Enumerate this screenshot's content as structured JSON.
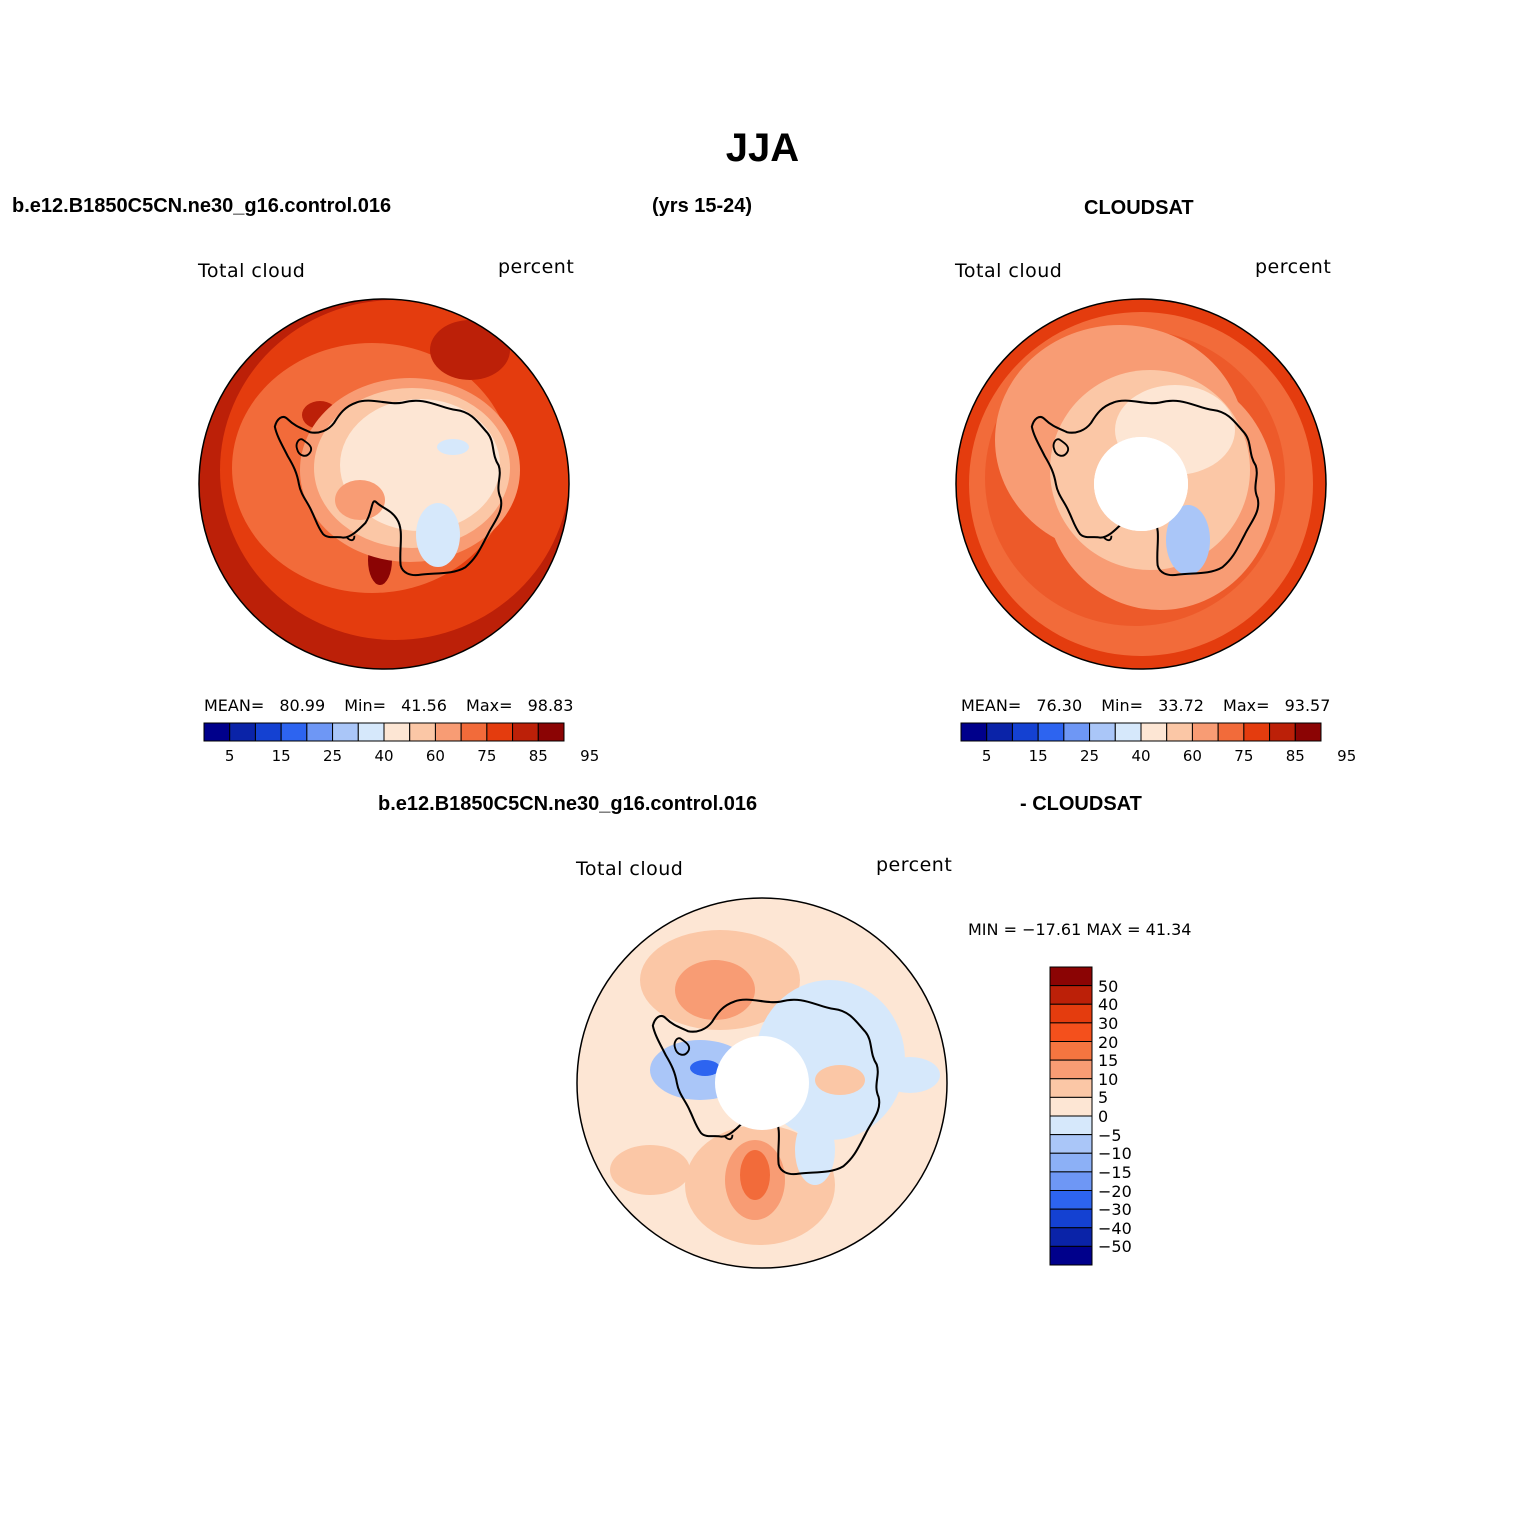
{
  "title": "JJA",
  "header": {
    "case": "b.e12.B1850C5CN.ne30_g16.control.016",
    "years": "(yrs 15-24)",
    "obs": "CLOUDSAT",
    "diff_case": "b.e12.B1850C5CN.ne30_g16.control.016",
    "diff_obs": "- CLOUDSAT"
  },
  "panels": [
    {
      "name": "model",
      "left_label": "Total cloud",
      "right_label": "percent",
      "stats": {
        "mean_label": "MEAN=",
        "mean": "80.99",
        "min_label": "Min=",
        "min": "41.56",
        "max_label": "Max=",
        "max": "98.83"
      }
    },
    {
      "name": "cloudsat",
      "left_label": "Total cloud",
      "right_label": "percent",
      "stats": {
        "mean_label": "MEAN=",
        "mean": "76.30",
        "min_label": "Min=",
        "min": "33.72",
        "max_label": "Max=",
        "max": "93.57"
      }
    },
    {
      "name": "difference",
      "left_label": "Total cloud",
      "right_label": "percent",
      "minmax": "MIN = −17.61  MAX =   41.34"
    }
  ],
  "colorbar_horizontal": {
    "colors": [
      "#00008b",
      "#0a23a8",
      "#1441d2",
      "#2d64f0",
      "#6e97f5",
      "#aac6f8",
      "#d6e8fb",
      "#fde6d4",
      "#fbc7a6",
      "#f89c74",
      "#f26b3a",
      "#e43c0e",
      "#bc2008",
      "#8b0404"
    ],
    "tick_labels": [
      "5",
      "15",
      "25",
      "40",
      "60",
      "75",
      "85",
      "95"
    ]
  },
  "colorbar_vertical": {
    "colors_top_to_bottom": [
      "#8b0404",
      "#bc2008",
      "#e43c0e",
      "#f4501c",
      "#f57540",
      "#f89c74",
      "#fbc7a6",
      "#fde6d4",
      "#d6e8fb",
      "#aac6f8",
      "#8cb0f6",
      "#6e97f5",
      "#2d64f0",
      "#1441d2",
      "#0a23a8",
      "#00008b"
    ],
    "tick_labels": [
      "50",
      "40",
      "30",
      "20",
      "15",
      "10",
      "5",
      "0",
      "−5",
      "−10",
      "−15",
      "−20",
      "−30",
      "−40",
      "−50"
    ]
  }
}
